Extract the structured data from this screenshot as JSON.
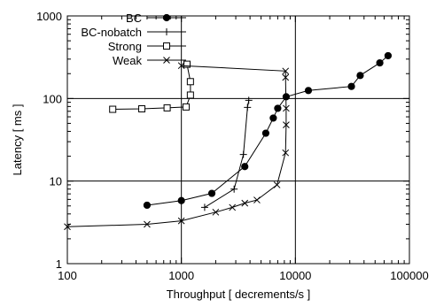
{
  "chart_data": {
    "type": "line",
    "xlabel": "Throughput [ decrements/s ]",
    "ylabel": "Latency [ ms ]",
    "xscale": "log",
    "yscale": "log",
    "xlim": [
      100,
      100000
    ],
    "ylim": [
      1,
      1000
    ],
    "x_ticks": [
      100,
      1000,
      10000,
      100000
    ],
    "x_tick_labels": [
      "100",
      "1000",
      "10000",
      "100000"
    ],
    "y_ticks": [
      1,
      10,
      100,
      1000
    ],
    "y_tick_labels": [
      "1",
      "10",
      "100",
      "1000"
    ],
    "grid": "major lines at x=1000, x=10000, y=10, y=100",
    "legend_position": "top-left",
    "series": [
      {
        "name": "BC",
        "marker": "filled-circle",
        "points": [
          [
            500,
            5.1
          ],
          [
            1000,
            5.8
          ],
          [
            1850,
            7.1
          ],
          [
            3600,
            15
          ],
          [
            5500,
            38
          ],
          [
            6400,
            58
          ],
          [
            7000,
            76
          ],
          [
            8300,
            105
          ],
          [
            13000,
            125
          ],
          [
            31000,
            140
          ],
          [
            37000,
            190
          ],
          [
            55000,
            270
          ],
          [
            65000,
            330
          ]
        ]
      },
      {
        "name": "BC-nobatch",
        "marker": "plus",
        "points": [
          [
            1600,
            4.8
          ],
          [
            2900,
            8
          ],
          [
            3500,
            21
          ],
          [
            3800,
            78
          ],
          [
            3900,
            95
          ]
        ]
      },
      {
        "name": "Strong",
        "marker": "open-square",
        "points": [
          [
            250,
            74
          ],
          [
            450,
            75
          ],
          [
            750,
            77
          ],
          [
            1100,
            79
          ],
          [
            1200,
            110
          ],
          [
            1200,
            160
          ],
          [
            1120,
            260
          ]
        ]
      },
      {
        "name": "Weak",
        "marker": "x",
        "points": [
          [
            100,
            2.8
          ],
          [
            500,
            3
          ],
          [
            1000,
            3.3
          ],
          [
            2000,
            4.2
          ],
          [
            2800,
            4.8
          ],
          [
            3600,
            5.4
          ],
          [
            4600,
            5.9
          ],
          [
            6900,
            9
          ],
          [
            8200,
            22
          ],
          [
            8300,
            48
          ],
          [
            8300,
            76
          ],
          [
            8200,
            180
          ],
          [
            8200,
            215
          ],
          [
            1000,
            250
          ]
        ]
      }
    ]
  }
}
